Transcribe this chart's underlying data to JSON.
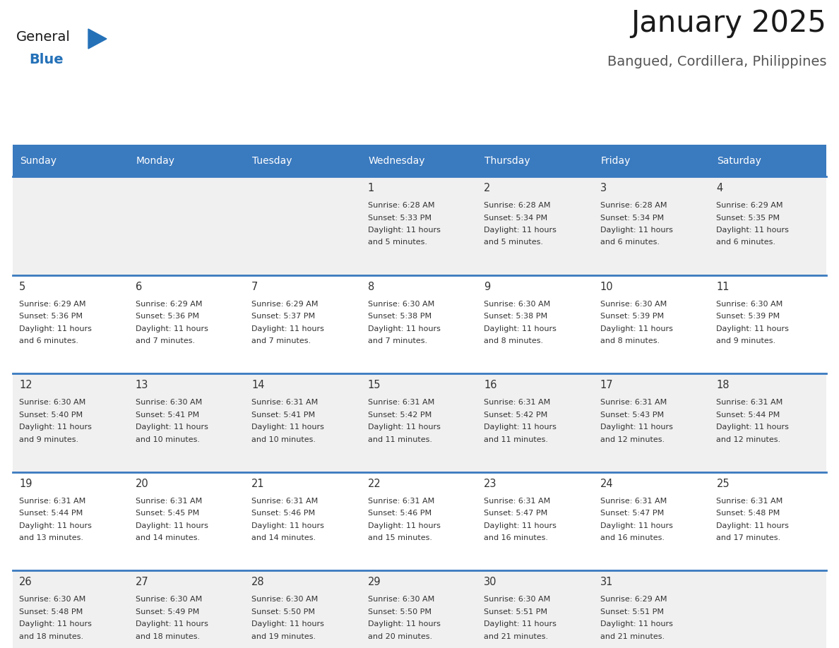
{
  "title": "January 2025",
  "subtitle": "Bangued, Cordillera, Philippines",
  "header_bg": "#3a7abf",
  "header_text": "#ffffff",
  "weekdays": [
    "Sunday",
    "Monday",
    "Tuesday",
    "Wednesday",
    "Thursday",
    "Friday",
    "Saturday"
  ],
  "row_bg_odd": "#f0f0f0",
  "row_bg_even": "#ffffff",
  "border_color": "#3a7abf",
  "logo_general_color": "#1a1a1a",
  "logo_blue_color": "#2471b8",
  "days": [
    {
      "day": 1,
      "col": 3,
      "row": 0,
      "sunrise": "6:28 AM",
      "sunset": "5:33 PM",
      "daylight": "11 hours and 5 minutes."
    },
    {
      "day": 2,
      "col": 4,
      "row": 0,
      "sunrise": "6:28 AM",
      "sunset": "5:34 PM",
      "daylight": "11 hours and 5 minutes."
    },
    {
      "day": 3,
      "col": 5,
      "row": 0,
      "sunrise": "6:28 AM",
      "sunset": "5:34 PM",
      "daylight": "11 hours and 6 minutes."
    },
    {
      "day": 4,
      "col": 6,
      "row": 0,
      "sunrise": "6:29 AM",
      "sunset": "5:35 PM",
      "daylight": "11 hours and 6 minutes."
    },
    {
      "day": 5,
      "col": 0,
      "row": 1,
      "sunrise": "6:29 AM",
      "sunset": "5:36 PM",
      "daylight": "11 hours and 6 minutes."
    },
    {
      "day": 6,
      "col": 1,
      "row": 1,
      "sunrise": "6:29 AM",
      "sunset": "5:36 PM",
      "daylight": "11 hours and 7 minutes."
    },
    {
      "day": 7,
      "col": 2,
      "row": 1,
      "sunrise": "6:29 AM",
      "sunset": "5:37 PM",
      "daylight": "11 hours and 7 minutes."
    },
    {
      "day": 8,
      "col": 3,
      "row": 1,
      "sunrise": "6:30 AM",
      "sunset": "5:38 PM",
      "daylight": "11 hours and 7 minutes."
    },
    {
      "day": 9,
      "col": 4,
      "row": 1,
      "sunrise": "6:30 AM",
      "sunset": "5:38 PM",
      "daylight": "11 hours and 8 minutes."
    },
    {
      "day": 10,
      "col": 5,
      "row": 1,
      "sunrise": "6:30 AM",
      "sunset": "5:39 PM",
      "daylight": "11 hours and 8 minutes."
    },
    {
      "day": 11,
      "col": 6,
      "row": 1,
      "sunrise": "6:30 AM",
      "sunset": "5:39 PM",
      "daylight": "11 hours and 9 minutes."
    },
    {
      "day": 12,
      "col": 0,
      "row": 2,
      "sunrise": "6:30 AM",
      "sunset": "5:40 PM",
      "daylight": "11 hours and 9 minutes."
    },
    {
      "day": 13,
      "col": 1,
      "row": 2,
      "sunrise": "6:30 AM",
      "sunset": "5:41 PM",
      "daylight": "11 hours and 10 minutes."
    },
    {
      "day": 14,
      "col": 2,
      "row": 2,
      "sunrise": "6:31 AM",
      "sunset": "5:41 PM",
      "daylight": "11 hours and 10 minutes."
    },
    {
      "day": 15,
      "col": 3,
      "row": 2,
      "sunrise": "6:31 AM",
      "sunset": "5:42 PM",
      "daylight": "11 hours and 11 minutes."
    },
    {
      "day": 16,
      "col": 4,
      "row": 2,
      "sunrise": "6:31 AM",
      "sunset": "5:42 PM",
      "daylight": "11 hours and 11 minutes."
    },
    {
      "day": 17,
      "col": 5,
      "row": 2,
      "sunrise": "6:31 AM",
      "sunset": "5:43 PM",
      "daylight": "11 hours and 12 minutes."
    },
    {
      "day": 18,
      "col": 6,
      "row": 2,
      "sunrise": "6:31 AM",
      "sunset": "5:44 PM",
      "daylight": "11 hours and 12 minutes."
    },
    {
      "day": 19,
      "col": 0,
      "row": 3,
      "sunrise": "6:31 AM",
      "sunset": "5:44 PM",
      "daylight": "11 hours and 13 minutes."
    },
    {
      "day": 20,
      "col": 1,
      "row": 3,
      "sunrise": "6:31 AM",
      "sunset": "5:45 PM",
      "daylight": "11 hours and 14 minutes."
    },
    {
      "day": 21,
      "col": 2,
      "row": 3,
      "sunrise": "6:31 AM",
      "sunset": "5:46 PM",
      "daylight": "11 hours and 14 minutes."
    },
    {
      "day": 22,
      "col": 3,
      "row": 3,
      "sunrise": "6:31 AM",
      "sunset": "5:46 PM",
      "daylight": "11 hours and 15 minutes."
    },
    {
      "day": 23,
      "col": 4,
      "row": 3,
      "sunrise": "6:31 AM",
      "sunset": "5:47 PM",
      "daylight": "11 hours and 16 minutes."
    },
    {
      "day": 24,
      "col": 5,
      "row": 3,
      "sunrise": "6:31 AM",
      "sunset": "5:47 PM",
      "daylight": "11 hours and 16 minutes."
    },
    {
      "day": 25,
      "col": 6,
      "row": 3,
      "sunrise": "6:31 AM",
      "sunset": "5:48 PM",
      "daylight": "11 hours and 17 minutes."
    },
    {
      "day": 26,
      "col": 0,
      "row": 4,
      "sunrise": "6:30 AM",
      "sunset": "5:48 PM",
      "daylight": "11 hours and 18 minutes."
    },
    {
      "day": 27,
      "col": 1,
      "row": 4,
      "sunrise": "6:30 AM",
      "sunset": "5:49 PM",
      "daylight": "11 hours and 18 minutes."
    },
    {
      "day": 28,
      "col": 2,
      "row": 4,
      "sunrise": "6:30 AM",
      "sunset": "5:50 PM",
      "daylight": "11 hours and 19 minutes."
    },
    {
      "day": 29,
      "col": 3,
      "row": 4,
      "sunrise": "6:30 AM",
      "sunset": "5:50 PM",
      "daylight": "11 hours and 20 minutes."
    },
    {
      "day": 30,
      "col": 4,
      "row": 4,
      "sunrise": "6:30 AM",
      "sunset": "5:51 PM",
      "daylight": "11 hours and 21 minutes."
    },
    {
      "day": 31,
      "col": 5,
      "row": 4,
      "sunrise": "6:29 AM",
      "sunset": "5:51 PM",
      "daylight": "11 hours and 21 minutes."
    }
  ],
  "figwidth": 11.88,
  "figheight": 9.18,
  "dpi": 100
}
